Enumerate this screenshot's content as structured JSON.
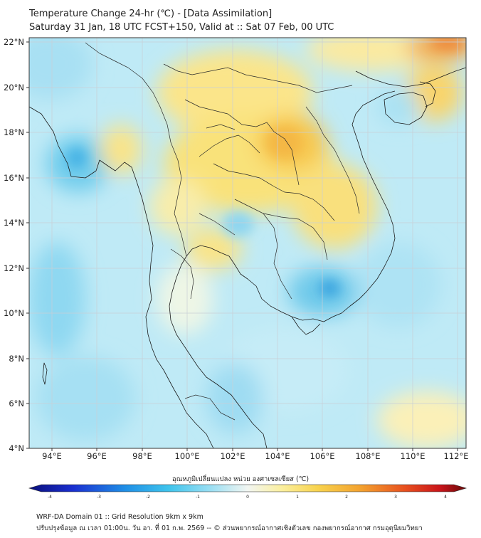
{
  "header": {
    "title_line1": "Temperature Change 24-hr (℃) - [Data Assimilation]",
    "title_line2": "Saturday 31 Jan, 18 UTC FCST+150, Valid at :: Sat 07 Feb, 00 UTC"
  },
  "map": {
    "lon_ticks": [
      "94°E",
      "96°E",
      "98°E",
      "100°E",
      "102°E",
      "104°E",
      "106°E",
      "108°E",
      "110°E",
      "112°E"
    ],
    "lat_ticks": [
      "22°N",
      "20°N",
      "18°N",
      "16°N",
      "14°N",
      "12°N",
      "10°N",
      "8°N",
      "6°N",
      "4°N"
    ],
    "lon_range": [
      93.0,
      112.4
    ],
    "lat_range": [
      4.0,
      22.2
    ],
    "colors": {
      "land_line": "#1a1a1a",
      "grid_line": "#c9cfd6"
    }
  },
  "colorbar": {
    "title": "อุณหภูมิเปลี่ยนแปลง หน่วย องศาเซลเซียส (℃)",
    "ticks": [
      "-4",
      "-3",
      "-2",
      "-1",
      "0",
      "1",
      "2",
      "3",
      "4"
    ],
    "range": [
      -4,
      4
    ]
  },
  "footer": {
    "line1": "WRF-DA Domain 01 :: Grid Resolution 9km x 9km",
    "line2": "ปรับปรุงข้อมูล ณ เวลา 01:00น. วัน อา. ที่ 01 ก.พ. 2569 -- © ส่วนพยากรณ์อากาศเชิงตัวเลข กองพยากรณ์อากาศ กรมอุตุนิยมวิทยา"
  }
}
